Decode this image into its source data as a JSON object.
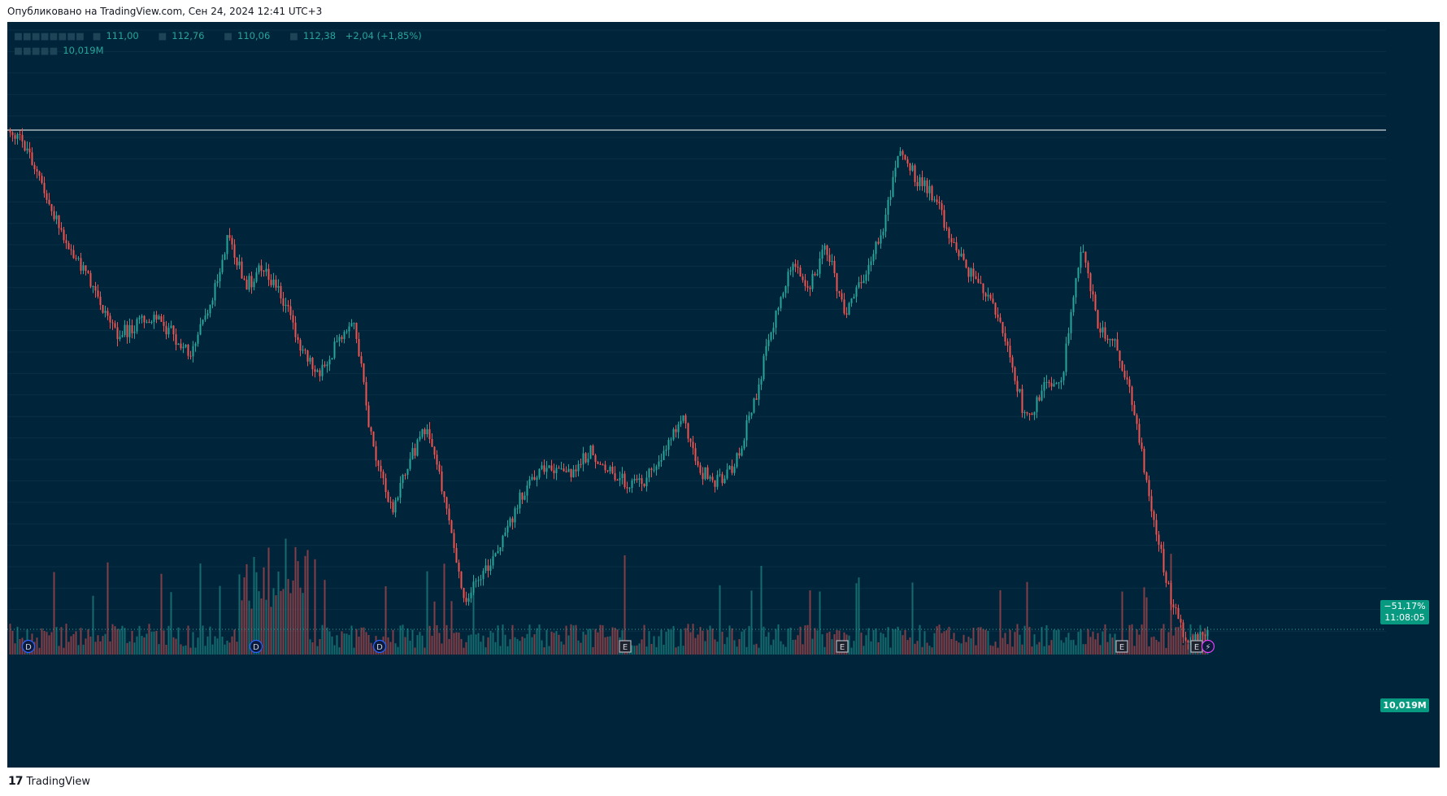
{
  "header": {
    "published_text": "Опубликовано на TradingView.com, Сен 24, 2024 12:41 UTC+3"
  },
  "legend": {
    "open": "111,00",
    "high": "112,76",
    "low": "110,06",
    "close": "112,38",
    "change": "+2,04 (+1,85%)",
    "volume": "10,019M"
  },
  "tags": {
    "change_pct": "−51,17%",
    "countdown": "11:08:05",
    "volume_value": "10,019M"
  },
  "colors": {
    "background": "#00243a",
    "up": "#26a69a",
    "down": "#ef5350",
    "tag": "#089981",
    "reference_line": "#ffffff",
    "event_dividend": "#2962ff",
    "event_earnings": "#b2b5be",
    "event_split": "#e040fb"
  },
  "footer": {
    "brand": "TradingView",
    "logo_icon": "tradingview-logo-icon"
  },
  "chart_data": {
    "type": "candlestick",
    "series": [
      {
        "name": "price",
        "trend_relative_change_pct": [
          0,
          -2,
          -7,
          -11,
          -14,
          -18,
          -21,
          -20,
          -19,
          -21,
          -23,
          -18,
          -11,
          -16,
          -14,
          -17,
          -22,
          -25,
          -22,
          -20,
          -33,
          -39,
          -34,
          -30,
          -38,
          -48,
          -46,
          -43,
          -38,
          -35,
          -35,
          -35,
          -33,
          -35,
          -36,
          -36,
          -33,
          -29,
          -35,
          -36,
          -34,
          -28,
          -20,
          -14,
          -16,
          -12,
          -19,
          -15,
          -11,
          -2,
          -5,
          -7,
          -12,
          -15,
          -17,
          -22,
          -30,
          -26,
          -25,
          -12,
          -20,
          -22,
          -29,
          -40,
          -48,
          -53,
          -51
        ]
      },
      {
        "name": "volume",
        "values": "relative bars"
      }
    ],
    "reference_line": {
      "label": "",
      "value_pct": 0
    },
    "last": {
      "change_pct": -51.17,
      "volume": "10,019M"
    },
    "events": [
      {
        "type": "dividend",
        "label": "D"
      },
      {
        "type": "dividend",
        "label": "D"
      },
      {
        "type": "dividend",
        "label": "D"
      },
      {
        "type": "earnings",
        "label": "E"
      },
      {
        "type": "earnings",
        "label": "E"
      },
      {
        "type": "earnings",
        "label": "E"
      },
      {
        "type": "earnings",
        "label": "E"
      },
      {
        "type": "split",
        "label": "⚡"
      }
    ],
    "xlabel": "",
    "ylabel": ""
  }
}
